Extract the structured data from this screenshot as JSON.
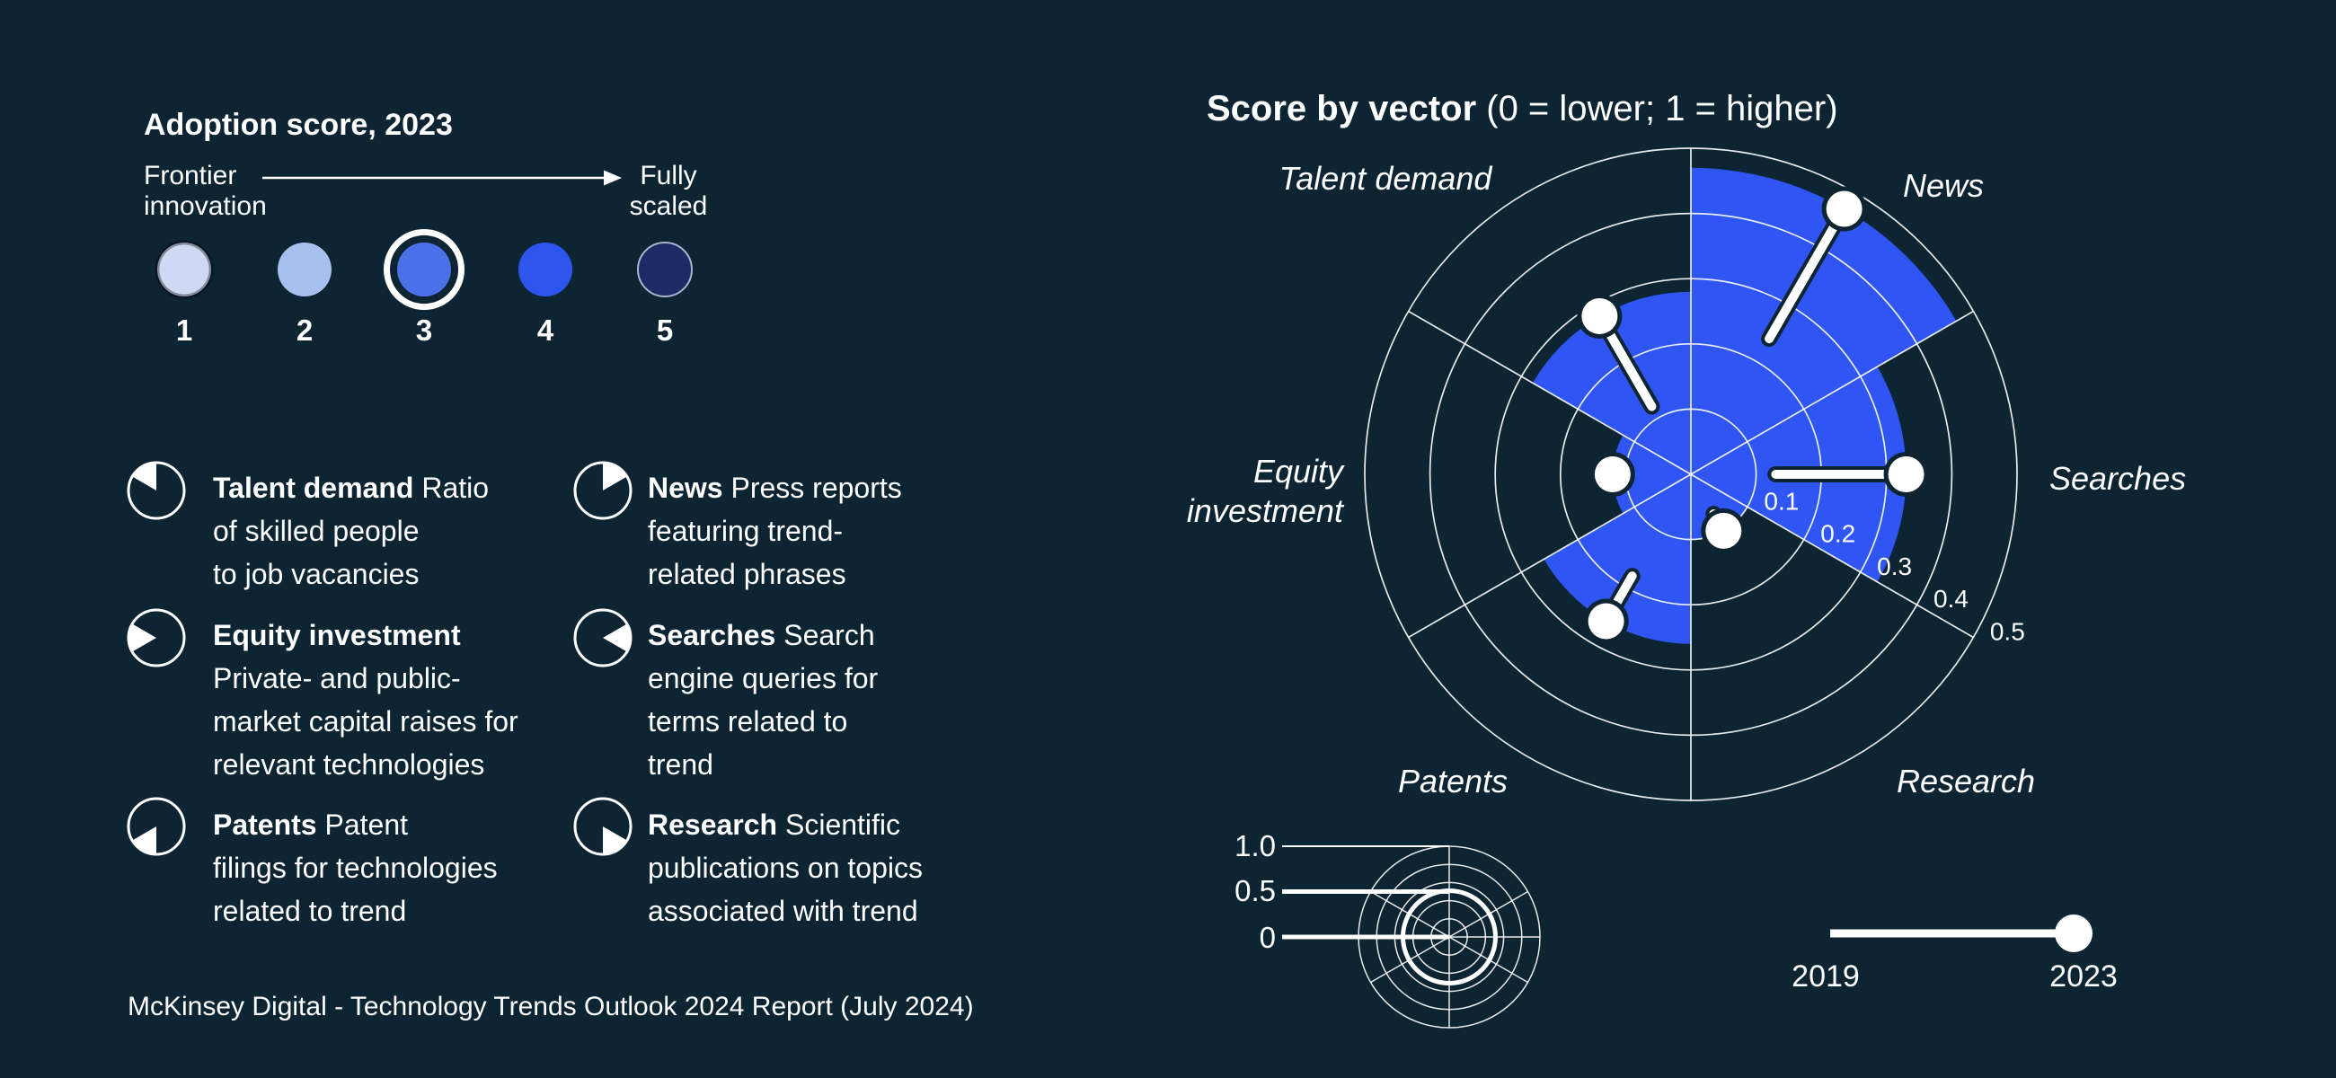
{
  "adoption_legend": {
    "title": "Adoption score, 2023",
    "left_label": "Frontier\ninnovation",
    "right_label": "Fully\nscaled",
    "scores": [
      {
        "value": "1",
        "color": "#cfd9f4",
        "selected": false
      },
      {
        "value": "2",
        "color": "#a7c0ef",
        "selected": false
      },
      {
        "value": "3",
        "color": "#4b71e9",
        "selected": true
      },
      {
        "value": "4",
        "color": "#2d55ee",
        "selected": false
      },
      {
        "value": "5",
        "color": "#1c2a66",
        "selected": false
      }
    ]
  },
  "definitions": [
    {
      "term": "Talent demand",
      "description": "Ratio\nof skilled people\nto job vacancies",
      "icon": "pie-sector-talent-demand-icon",
      "sector_start_deg": 300
    },
    {
      "term": "News",
      "description": "Press reports\nfeaturing trend-\nrelated phrases",
      "icon": "pie-sector-news-icon",
      "sector_start_deg": 0
    },
    {
      "term": "Equity investment",
      "description": "\nPrivate- and public-\nmarket capital raises for\nrelevant technologies",
      "icon": "pie-sector-equity-investment-icon",
      "sector_start_deg": 240
    },
    {
      "term": "Searches",
      "description": "Search\nengine queries for\nterms related to\ntrend",
      "icon": "pie-sector-searches-icon",
      "sector_start_deg": 60
    },
    {
      "term": "Patents",
      "description": "Patent\nfilings for technologies\nrelated to trend",
      "icon": "pie-sector-patents-icon",
      "sector_start_deg": 180
    },
    {
      "term": "Research",
      "description": "Scientific\npublications on topics\nassociated with trend",
      "icon": "pie-sector-research-icon",
      "sector_start_deg": 120
    }
  ],
  "source": "McKinsey Digital - Technology Trends Outlook 2024 Report (July 2024)",
  "chart_data": {
    "type": "polar_sector_bar",
    "title": "Score by vector",
    "subtitle": " (0 = lower; 1 = higher)",
    "rings": [
      0.1,
      0.2,
      0.3,
      0.4,
      0.5
    ],
    "ring_max": 0.5,
    "accent_color": "#2f55f2",
    "grid_color": "rgba(255,255,255,0.9)",
    "vectors": [
      {
        "label": "News",
        "start_deg": 0,
        "score_2019": 0.24,
        "score_2023": 0.47
      },
      {
        "label": "Searches",
        "start_deg": 60,
        "score_2019": 0.13,
        "score_2023": 0.33
      },
      {
        "label": "Research",
        "start_deg": 120,
        "score_2019": 0.07,
        "score_2023": 0.1
      },
      {
        "label": "Patents",
        "start_deg": 180,
        "score_2019": 0.18,
        "score_2023": 0.26
      },
      {
        "label": "Equity investment",
        "start_deg": 240,
        "score_2019": 0.1,
        "score_2023": 0.12
      },
      {
        "label": "Talent demand",
        "start_deg": 300,
        "score_2019": 0.12,
        "score_2023": 0.28
      }
    ],
    "scale_legend": {
      "rings": [
        0.2,
        0.4,
        0.6,
        0.8,
        1.0
      ],
      "bold_ring": 0.5,
      "labels": [
        "1.0",
        "0.5",
        "0"
      ]
    },
    "period_legend": {
      "start": "2019",
      "end": "2023"
    }
  }
}
